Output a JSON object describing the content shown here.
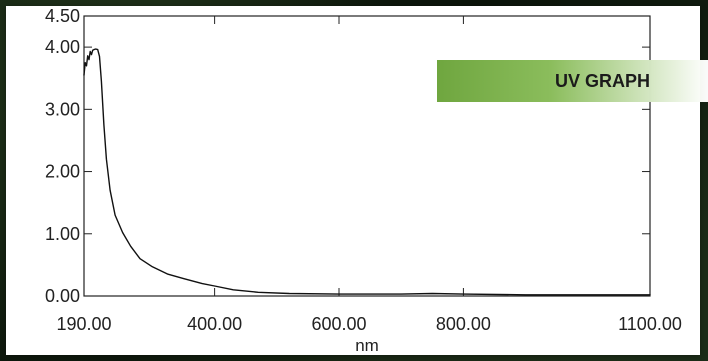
{
  "chart_data": {
    "type": "line",
    "xlabel": "nm",
    "ylabel": "",
    "xlim": [
      190,
      1100
    ],
    "ylim": [
      0,
      4.5
    ],
    "x_ticks": [
      {
        "value": 190,
        "label": "190.00"
      },
      {
        "value": 400,
        "label": "400.00"
      },
      {
        "value": 600,
        "label": "600.00"
      },
      {
        "value": 800,
        "label": "800.00"
      },
      {
        "value": 1100,
        "label": "1100.00"
      }
    ],
    "y_ticks": [
      {
        "value": 0,
        "label": "0.00"
      },
      {
        "value": 1,
        "label": "1.00"
      },
      {
        "value": 2,
        "label": "2.00"
      },
      {
        "value": 3,
        "label": "3.00"
      },
      {
        "value": 4,
        "label": "4.00"
      },
      {
        "value": 4.5,
        "label": "4.50"
      }
    ],
    "series": [
      {
        "values": [
          {
            "x": 190,
            "y": 3.55
          },
          {
            "x": 192,
            "y": 3.75
          },
          {
            "x": 194,
            "y": 3.7
          },
          {
            "x": 196,
            "y": 3.86
          },
          {
            "x": 198,
            "y": 3.8
          },
          {
            "x": 200,
            "y": 3.93
          },
          {
            "x": 202,
            "y": 3.88
          },
          {
            "x": 204,
            "y": 3.95
          },
          {
            "x": 206,
            "y": 3.96
          },
          {
            "x": 209,
            "y": 3.97
          },
          {
            "x": 212,
            "y": 3.96
          },
          {
            "x": 215,
            "y": 3.85
          },
          {
            "x": 218,
            "y": 3.45
          },
          {
            "x": 222,
            "y": 2.75
          },
          {
            "x": 226,
            "y": 2.2
          },
          {
            "x": 232,
            "y": 1.7
          },
          {
            "x": 240,
            "y": 1.3
          },
          {
            "x": 252,
            "y": 1.02
          },
          {
            "x": 265,
            "y": 0.8
          },
          {
            "x": 280,
            "y": 0.6
          },
          {
            "x": 300,
            "y": 0.47
          },
          {
            "x": 325,
            "y": 0.35
          },
          {
            "x": 350,
            "y": 0.28
          },
          {
            "x": 380,
            "y": 0.2
          },
          {
            "x": 400,
            "y": 0.16
          },
          {
            "x": 430,
            "y": 0.1
          },
          {
            "x": 470,
            "y": 0.06
          },
          {
            "x": 520,
            "y": 0.04
          },
          {
            "x": 600,
            "y": 0.03
          },
          {
            "x": 700,
            "y": 0.03
          },
          {
            "x": 750,
            "y": 0.04
          },
          {
            "x": 800,
            "y": 0.03
          },
          {
            "x": 900,
            "y": 0.02
          },
          {
            "x": 1000,
            "y": 0.02
          },
          {
            "x": 1100,
            "y": 0.02
          }
        ]
      }
    ]
  },
  "badge": {
    "label": "UV GRAPH"
  }
}
